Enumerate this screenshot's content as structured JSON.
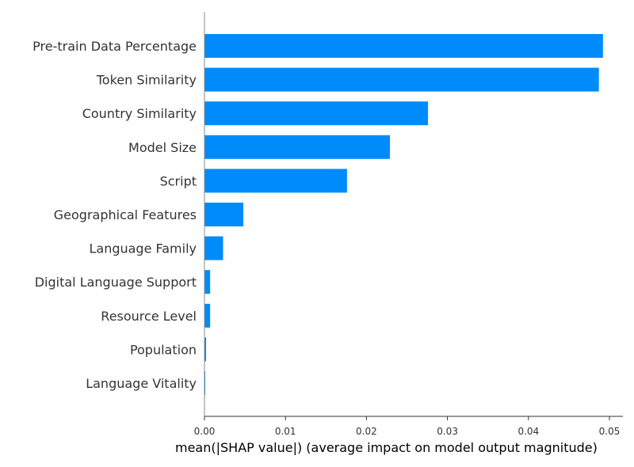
{
  "chart_data": {
    "type": "bar",
    "orientation": "horizontal",
    "categories": [
      "Pre-train Data Percentage",
      "Token Similarity",
      "Country Similarity",
      "Model Size",
      "Script",
      "Geographical Features",
      "Language Family",
      "Digital Language Support",
      "Resource Level",
      "Population",
      "Language Vitality"
    ],
    "values": [
      0.0492,
      0.0487,
      0.0276,
      0.0229,
      0.0176,
      0.0048,
      0.0023,
      0.0007,
      0.0007,
      0.0002,
      0.0001
    ],
    "xlabel": "mean(|SHAP value|) (average impact on model output magnitude)",
    "xticks": [
      "0.00",
      "0.01",
      "0.02",
      "0.03",
      "0.04",
      "0.05"
    ],
    "xlim": [
      0,
      0.0516
    ],
    "bar_color": "#008bfb",
    "grid": false
  }
}
